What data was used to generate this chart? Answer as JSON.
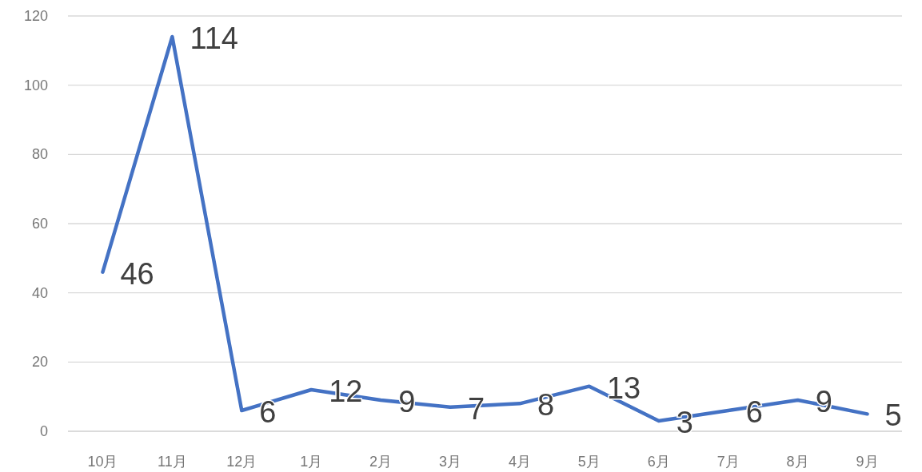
{
  "chart_data": {
    "type": "line",
    "categories": [
      "10月",
      "11月",
      "12月",
      "1月",
      "2月",
      "3月",
      "4月",
      "5月",
      "6月",
      "7月",
      "8月",
      "9月"
    ],
    "series": [
      {
        "color": "#4472c4",
        "values": [
          46,
          114,
          6,
          12,
          9,
          7,
          8,
          13,
          3,
          6,
          9,
          5
        ]
      }
    ],
    "ylim": [
      0,
      120
    ],
    "yticks": [
      0,
      20,
      40,
      60,
      80,
      100,
      120
    ],
    "grid": "y",
    "data_labels": true,
    "marker": "none",
    "line_style": "solid"
  }
}
